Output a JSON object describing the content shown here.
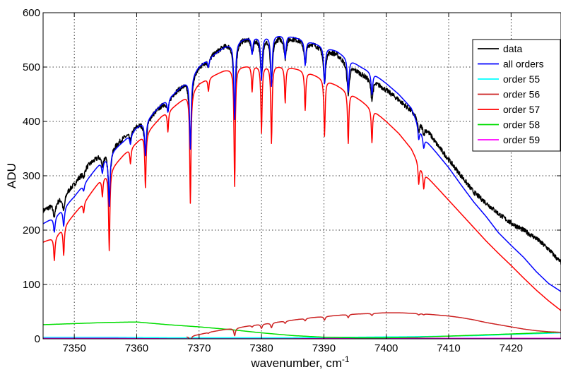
{
  "chart_data": {
    "type": "line",
    "xlabel": "wavenumber, cm",
    "xlabel_superscript": "-1",
    "ylabel": "ADU",
    "xlim": [
      7345,
      7428
    ],
    "ylim": [
      0,
      600
    ],
    "x_ticks": [
      7350,
      7360,
      7370,
      7380,
      7390,
      7400,
      7410,
      7420
    ],
    "x_tick_labels": [
      "7350",
      "7360",
      "7370",
      "7380",
      "7390",
      "7400",
      "7410",
      "7420"
    ],
    "y_ticks": [
      0,
      100,
      200,
      300,
      400,
      500,
      600
    ],
    "y_tick_labels": [
      "0",
      "100",
      "200",
      "300",
      "400",
      "500",
      "600"
    ],
    "grid": true,
    "legend_position": "top-right",
    "series": [
      {
        "name": "data",
        "color": "#000000",
        "x": [
          7345,
          7347,
          7350,
          7352,
          7354,
          7356,
          7358,
          7360,
          7362,
          7364,
          7366,
          7368,
          7370,
          7372,
          7374,
          7376,
          7378,
          7380,
          7382,
          7384,
          7386,
          7388,
          7390,
          7392,
          7394,
          7396,
          7398,
          7400,
          7402,
          7404,
          7406,
          7408,
          7410,
          7412,
          7414,
          7416,
          7418,
          7420,
          7422,
          7424,
          7426,
          7428
        ],
        "y": [
          236,
          252,
          285,
          318,
          338,
          352,
          372,
          392,
          408,
          430,
          453,
          474,
          501,
          522,
          540,
          550,
          555,
          556,
          556,
          556,
          551,
          545,
          535,
          525,
          505,
          488,
          475,
          458,
          440,
          420,
          395,
          360,
          330,
          300,
          270,
          250,
          230,
          213,
          200,
          185,
          165,
          140
        ]
      },
      {
        "name": "all orders",
        "color": "#0000ff",
        "x": [
          7345,
          7347,
          7350,
          7352,
          7354,
          7356,
          7358,
          7360,
          7362,
          7364,
          7366,
          7368,
          7370,
          7372,
          7374,
          7376,
          7378,
          7380,
          7382,
          7384,
          7386,
          7388,
          7390,
          7392,
          7394,
          7396,
          7398,
          7400,
          7402,
          7404,
          7406,
          7408,
          7410,
          7412,
          7414,
          7416,
          7418,
          7420,
          7422,
          7424,
          7426,
          7428
        ],
        "y": [
          212,
          226,
          262,
          292,
          322,
          345,
          365,
          389,
          408,
          432,
          452,
          474,
          502,
          520,
          537,
          548,
          555,
          557,
          559,
          559,
          553,
          546,
          538,
          530,
          515,
          500,
          488,
          470,
          450,
          425,
          370,
          343,
          315,
          283,
          252,
          225,
          195,
          172,
          150,
          124,
          102,
          87
        ]
      },
      {
        "name": "order 55",
        "color": "#00ffff",
        "x": [
          7345,
          7355,
          7365,
          7375,
          7385,
          7395,
          7405,
          7415,
          7420,
          7428
        ],
        "y": [
          3,
          3,
          2,
          2,
          2,
          3,
          4,
          6,
          8,
          11
        ]
      },
      {
        "name": "order 56",
        "color": "#cc2222",
        "x": [
          7368,
          7370,
          7372,
          7374,
          7376,
          7378,
          7380,
          7382,
          7384,
          7386,
          7388,
          7390,
          7392,
          7394,
          7396,
          7398,
          7400,
          7402,
          7404,
          7406,
          7408,
          7410,
          7412,
          7414,
          7416,
          7418,
          7420,
          7422,
          7424,
          7426,
          7428
        ],
        "y": [
          4,
          8,
          13,
          17,
          20,
          24,
          27,
          30,
          33,
          36,
          39,
          41,
          43,
          45,
          46,
          47,
          48,
          48,
          47,
          46,
          44,
          42,
          39,
          35,
          30,
          26,
          22,
          18,
          15,
          13,
          12
        ]
      },
      {
        "name": "order 57",
        "color": "#ff0000",
        "x": [
          7345,
          7347,
          7350,
          7352,
          7354,
          7356,
          7358,
          7360,
          7362,
          7364,
          7366,
          7368,
          7370,
          7372,
          7374,
          7376,
          7378,
          7380,
          7382,
          7384,
          7386,
          7388,
          7390,
          7392,
          7394,
          7396,
          7398,
          7400,
          7402,
          7404,
          7406,
          7408,
          7410,
          7412,
          7414,
          7416,
          7418,
          7420,
          7422,
          7424,
          7426,
          7428
        ],
        "y": [
          178,
          188,
          230,
          258,
          290,
          315,
          340,
          362,
          385,
          410,
          428,
          447,
          470,
          483,
          494,
          500,
          503,
          503,
          503,
          501,
          496,
          488,
          478,
          467,
          454,
          438,
          420,
          400,
          378,
          350,
          305,
          280,
          255,
          230,
          205,
          180,
          157,
          135,
          112,
          90,
          70,
          52
        ]
      },
      {
        "name": "order 58",
        "color": "#00dd00",
        "x": [
          7345,
          7350,
          7355,
          7360,
          7365,
          7370,
          7375,
          7380,
          7385,
          7390,
          7395,
          7400,
          7405,
          7410,
          7415,
          7420,
          7425,
          7428
        ],
        "y": [
          26,
          28,
          30,
          31,
          26,
          22,
          17,
          11,
          6,
          3,
          2,
          2,
          3,
          5,
          7,
          9,
          11,
          12
        ]
      },
      {
        "name": "order 59",
        "color": "#ff00ff",
        "x": [
          7345,
          7355,
          7365,
          7375,
          7385,
          7395,
          7405,
          7415,
          7420,
          7428
        ],
        "y": [
          1,
          1,
          1,
          1,
          1,
          1,
          1,
          1,
          1,
          1
        ]
      }
    ],
    "absorption_lines": [
      {
        "x": 7346.8,
        "depth": 45
      },
      {
        "x": 7348.3,
        "depth": 55
      },
      {
        "x": 7351.5,
        "depth": 20
      },
      {
        "x": 7354.5,
        "depth": 35
      },
      {
        "x": 7355.6,
        "depth": 155
      },
      {
        "x": 7359.0,
        "depth": 30
      },
      {
        "x": 7361.4,
        "depth": 105
      },
      {
        "x": 7365.0,
        "depth": 40
      },
      {
        "x": 7368.6,
        "depth": 215
      },
      {
        "x": 7371.5,
        "depth": 25
      },
      {
        "x": 7375.7,
        "depth": 230
      },
      {
        "x": 7378.5,
        "depth": 50
      },
      {
        "x": 7380.0,
        "depth": 130
      },
      {
        "x": 7381.6,
        "depth": 150
      },
      {
        "x": 7383.8,
        "depth": 70
      },
      {
        "x": 7387.0,
        "depth": 75
      },
      {
        "x": 7390.1,
        "depth": 110
      },
      {
        "x": 7393.9,
        "depth": 100
      },
      {
        "x": 7397.7,
        "depth": 65
      },
      {
        "x": 7405.2,
        "depth": 40
      },
      {
        "x": 7406.0,
        "depth": 30
      }
    ]
  }
}
